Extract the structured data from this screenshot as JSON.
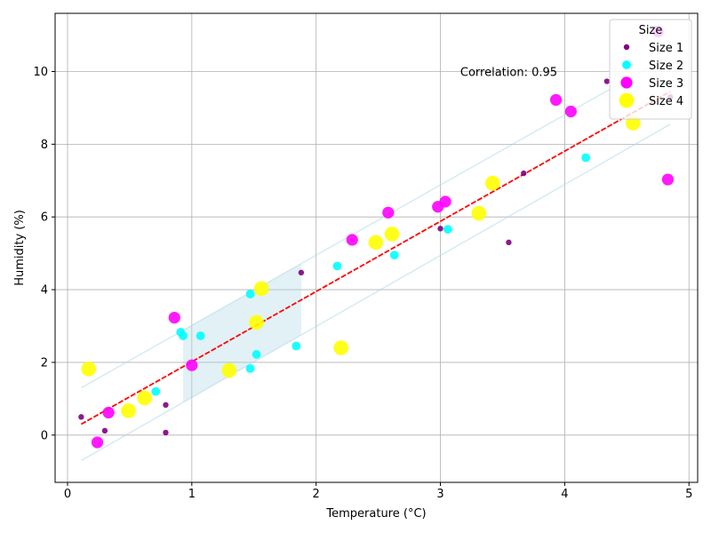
{
  "chart_data": {
    "type": "scatter",
    "title": "",
    "xlabel": "Temperature (°C)",
    "ylabel": "Humidity (%)",
    "xlim": [
      -0.1,
      5.07
    ],
    "ylim": [
      -1.3,
      11.6
    ],
    "xticks": [
      0,
      1,
      2,
      3,
      4,
      5
    ],
    "yticks": [
      0,
      2,
      4,
      6,
      8,
      10
    ],
    "xtick_labels": [
      "0",
      "1",
      "2",
      "3",
      "4",
      "5"
    ],
    "ytick_labels": [
      "0",
      "2",
      "4",
      "6",
      "8",
      "10"
    ],
    "grid": true,
    "legend": {
      "title": "Size",
      "placement": "top-right"
    },
    "annotation": "Correlation: 0.95",
    "series": [
      {
        "name": "Size 1",
        "color": "#800080",
        "size": 1,
        "points": [
          [
            0.11,
            0.5
          ],
          [
            0.3,
            0.12
          ],
          [
            0.79,
            0.83
          ],
          [
            0.79,
            0.07
          ],
          [
            1.88,
            4.47
          ],
          [
            3.0,
            5.68
          ],
          [
            3.55,
            5.3
          ],
          [
            3.67,
            7.2
          ],
          [
            4.34,
            9.73
          ],
          [
            4.85,
            9.3
          ]
        ]
      },
      {
        "name": "Size 2",
        "color": "#00FFFF",
        "size": 2,
        "points": [
          [
            0.71,
            1.2
          ],
          [
            0.91,
            2.83
          ],
          [
            0.93,
            2.73
          ],
          [
            1.07,
            2.73
          ],
          [
            1.47,
            3.88
          ],
          [
            1.47,
            1.83
          ],
          [
            1.52,
            2.22
          ],
          [
            1.84,
            2.45
          ],
          [
            2.17,
            4.65
          ],
          [
            2.63,
            4.95
          ],
          [
            3.06,
            5.66
          ],
          [
            4.17,
            7.63
          ]
        ]
      },
      {
        "name": "Size 3",
        "color": "#FF00FF",
        "size": 3,
        "points": [
          [
            0.24,
            -0.2
          ],
          [
            0.33,
            0.62
          ],
          [
            0.86,
            3.23
          ],
          [
            1.0,
            1.92
          ],
          [
            2.29,
            5.37
          ],
          [
            2.58,
            6.12
          ],
          [
            2.98,
            6.28
          ],
          [
            3.04,
            6.42
          ],
          [
            3.93,
            9.22
          ],
          [
            4.05,
            8.9
          ],
          [
            4.75,
            11.1
          ],
          [
            4.83,
            7.03
          ]
        ]
      },
      {
        "name": "Size 4",
        "color": "#FFFF00",
        "size": 4,
        "points": [
          [
            0.17,
            1.82
          ],
          [
            0.49,
            0.67
          ],
          [
            0.62,
            1.02
          ],
          [
            1.3,
            1.78
          ],
          [
            1.52,
            3.1
          ],
          [
            1.56,
            4.03
          ],
          [
            2.2,
            2.4
          ],
          [
            2.48,
            5.3
          ],
          [
            2.61,
            5.53
          ],
          [
            3.31,
            6.1
          ],
          [
            3.42,
            6.93
          ],
          [
            4.55,
            8.58
          ]
        ]
      }
    ],
    "trendline": {
      "color": "#FF0000",
      "x": [
        0.11,
        4.85
      ],
      "y": [
        0.3,
        9.45
      ]
    },
    "confidence_band": {
      "color": "#ADD8E6",
      "x": [
        0.11,
        4.85
      ],
      "upper": [
        1.3,
        10.45
      ],
      "lower": [
        -0.7,
        8.55
      ]
    },
    "shaded_region": {
      "color": "#ADD8E6",
      "x": [
        0.93,
        1.88
      ]
    }
  }
}
